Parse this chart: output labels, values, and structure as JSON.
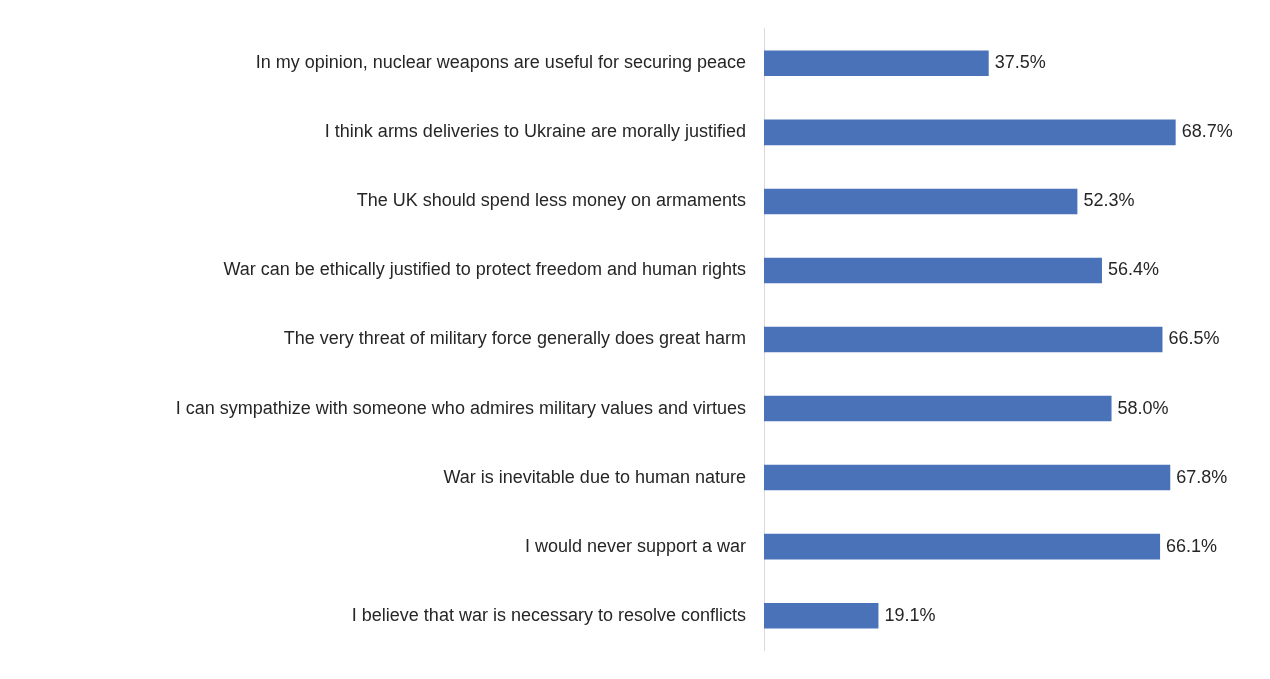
{
  "chart_data": {
    "type": "bar",
    "orientation": "horizontal",
    "categories": [
      "In my opinion, nuclear weapons are useful for securing peace",
      "I think arms deliveries to Ukraine are morally justified",
      "The UK should spend less money on armaments",
      "War can be ethically justified to protect freedom and human rights",
      "The very threat of military force generally does great harm",
      "I can sympathize with someone who admires military values and virtues",
      "War is inevitable due to human nature",
      "I would never support a war",
      "I believe that war is necessary to resolve conflicts"
    ],
    "values": [
      37.5,
      68.7,
      52.3,
      56.4,
      66.5,
      58.0,
      67.8,
      66.1,
      19.1
    ],
    "value_labels": [
      "37.5%",
      "68.7%",
      "52.3%",
      "56.4%",
      "66.5%",
      "58.0%",
      "67.8%",
      "66.1%",
      "19.1%"
    ],
    "color": "#4a72b8",
    "tick_labels": "y"
  }
}
